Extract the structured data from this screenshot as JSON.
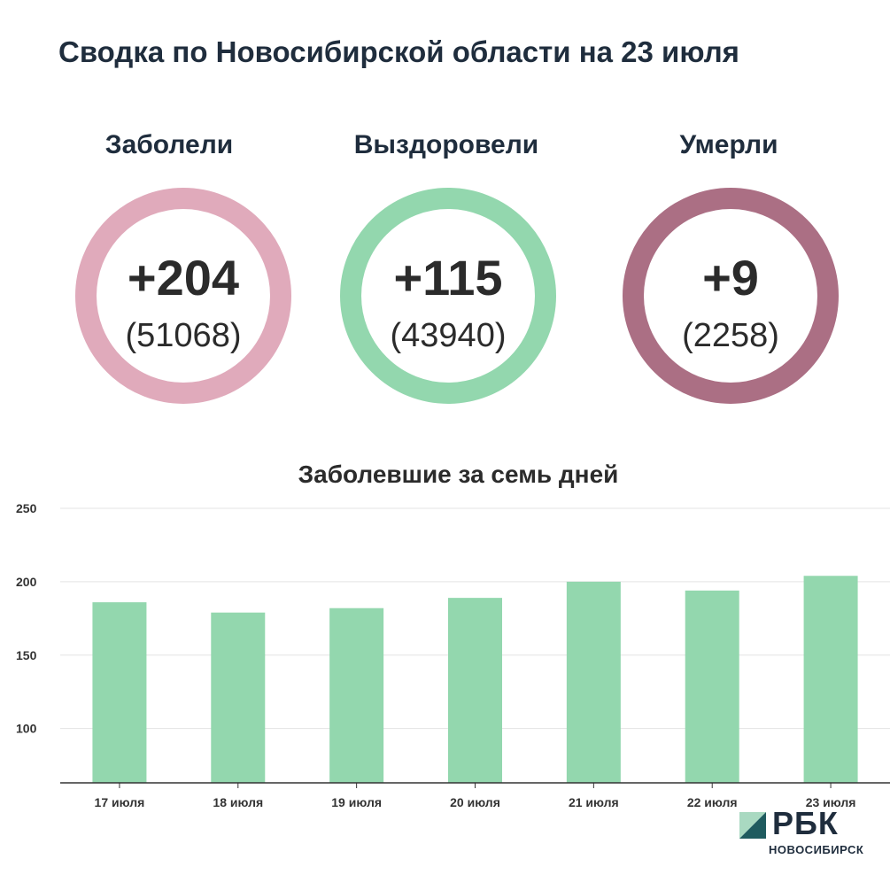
{
  "title": "Сводка по Новосибирской области на 23 июля",
  "stats": [
    {
      "label": "Заболели",
      "value": "+204",
      "total": "(51068)",
      "color": "#e0aabb"
    },
    {
      "label": "Выздоровели",
      "value": "+115",
      "total": "(43940)",
      "color": "#93d7ae"
    },
    {
      "label": "Умерли",
      "value": "+9",
      "total": "(2258)",
      "color": "#ab6f84"
    }
  ],
  "chart_data": {
    "type": "bar",
    "title": "Заболевшие за семь дней",
    "categories": [
      "17 июля",
      "18 июля",
      "19 июля",
      "20 июля",
      "21 июля",
      "22 июля",
      "23 июля"
    ],
    "values": [
      186,
      179,
      182,
      189,
      200,
      194,
      204
    ],
    "yticks": [
      100,
      150,
      200,
      250
    ],
    "ylim": [
      63,
      250
    ],
    "grid": true,
    "bar_color": "#93d7ae"
  },
  "logo": {
    "name": "РБК",
    "subtitle": "НОВОСИБИРСК"
  }
}
